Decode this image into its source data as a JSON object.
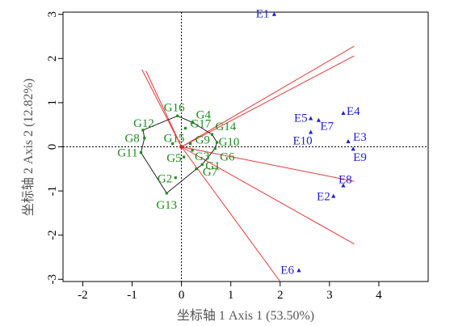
{
  "chart_data": {
    "type": "scatter",
    "title": "",
    "xlabel": "坐标轴 1 Axis 1 (53.50%)",
    "ylabel": "坐标轴 2 Axis 2 (12.82%)",
    "xlim": [
      -2.4,
      5.0
    ],
    "ylim": [
      -3.05,
      3.05
    ],
    "xticks": [
      "-2",
      "-1",
      "0",
      "1",
      "2",
      "3",
      "4"
    ],
    "yticks": [
      "-3",
      "-2",
      "-1",
      "0",
      "1",
      "2",
      "3"
    ],
    "origin": [
      0.0,
      0.0
    ],
    "genotypes": [
      {
        "label": "G1",
        "x": 0.42,
        "y": -0.4
      },
      {
        "label": "G2",
        "x": -0.12,
        "y": -0.7
      },
      {
        "label": "G3",
        "x": 0.22,
        "y": -0.08
      },
      {
        "label": "G4",
        "x": 0.23,
        "y": 0.55
      },
      {
        "label": "G5",
        "x": 0.05,
        "y": -0.23
      },
      {
        "label": "G6",
        "x": 0.68,
        "y": -0.04
      },
      {
        "label": "G7",
        "x": 0.3,
        "y": -0.5
      },
      {
        "label": "G8",
        "x": -0.75,
        "y": 0.2
      },
      {
        "label": "G9",
        "x": 0.18,
        "y": 0.07
      },
      {
        "label": "G10",
        "x": 0.72,
        "y": 0.1
      },
      {
        "label": "G11",
        "x": -0.82,
        "y": -0.13
      },
      {
        "label": "G12",
        "x": -0.78,
        "y": 0.38
      },
      {
        "label": "G13",
        "x": -0.3,
        "y": -1.05
      },
      {
        "label": "G14",
        "x": 0.62,
        "y": 0.28
      },
      {
        "label": "G15",
        "x": -0.18,
        "y": 0.07
      },
      {
        "label": "G16",
        "x": -0.08,
        "y": 0.7
      },
      {
        "label": "G17",
        "x": 0.08,
        "y": 0.42
      }
    ],
    "environments": [
      {
        "label": "E1",
        "x": 1.88,
        "y": 3.0
      },
      {
        "label": "E2",
        "x": 3.08,
        "y": -1.12
      },
      {
        "label": "E3",
        "x": 3.38,
        "y": 0.12
      },
      {
        "label": "E4",
        "x": 3.28,
        "y": 0.76
      },
      {
        "label": "E5",
        "x": 2.62,
        "y": 0.64
      },
      {
        "label": "E6",
        "x": 2.38,
        "y": -2.8
      },
      {
        "label": "E7",
        "x": 2.78,
        "y": 0.6
      },
      {
        "label": "E8",
        "x": 3.28,
        "y": -0.88
      },
      {
        "label": "E9",
        "x": 3.48,
        "y": -0.05
      },
      {
        "label": "E10",
        "x": 2.62,
        "y": 0.33
      }
    ],
    "polygon": [
      "G16",
      "G4",
      "G14",
      "G10",
      "G6",
      "G1",
      "G13",
      "G11",
      "G8",
      "G12"
    ],
    "rays": [
      {
        "x": -0.8,
        "y": 1.75
      },
      {
        "x": -0.72,
        "y": 1.72
      },
      {
        "x": 3.5,
        "y": 2.28
      },
      {
        "x": 3.5,
        "y": 2.06
      },
      {
        "x": 3.5,
        "y": -0.78
      },
      {
        "x": 3.5,
        "y": -2.2
      },
      {
        "x": 2.0,
        "y": -3.05
      }
    ],
    "colors": {
      "genotype": "#1f8a1f",
      "environment": "#1f1fd0",
      "polygon": "#222222",
      "rays": "#e8383a",
      "origin": "#e02020",
      "reference_lines": "#000000"
    },
    "reference_lines": "dotted"
  }
}
